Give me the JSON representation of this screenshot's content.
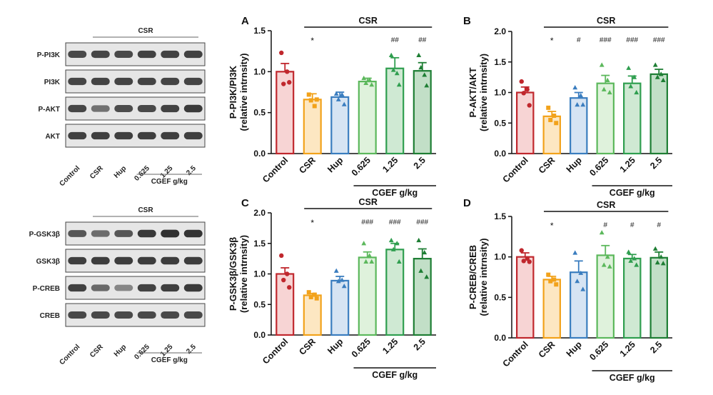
{
  "blots": {
    "top": {
      "group_label": "CSR",
      "rows": [
        "P-PI3K",
        "PI3K",
        "P-AKT",
        "AKT"
      ],
      "lanes": [
        "Control",
        "CSR",
        "Hup",
        "0.625",
        "1.25",
        "2.5"
      ],
      "dose_label": "CGEF g/kg",
      "band_intensity": [
        [
          0.8,
          0.82,
          0.8,
          0.84,
          0.84,
          0.85
        ],
        [
          0.82,
          0.83,
          0.83,
          0.83,
          0.83,
          0.83
        ],
        [
          0.82,
          0.55,
          0.78,
          0.8,
          0.84,
          0.88
        ],
        [
          0.85,
          0.86,
          0.86,
          0.86,
          0.86,
          0.86
        ]
      ]
    },
    "bottom": {
      "group_label": "CSR",
      "rows": [
        "P-GSK3β",
        "GSK3β",
        "P-CREB",
        "CREB"
      ],
      "lanes": [
        "Control",
        "CSR",
        "Hup",
        "0.625",
        "1.25",
        "2.5"
      ],
      "dose_label": "CGEF g/kg",
      "band_intensity": [
        [
          0.72,
          0.58,
          0.72,
          0.9,
          0.95,
          0.93
        ],
        [
          0.86,
          0.87,
          0.87,
          0.87,
          0.87,
          0.87
        ],
        [
          0.85,
          0.6,
          0.42,
          0.84,
          0.86,
          0.88
        ],
        [
          0.8,
          0.8,
          0.8,
          0.8,
          0.8,
          0.8
        ]
      ]
    }
  },
  "chart_data": [
    {
      "panel": "A",
      "type": "bar",
      "title": "",
      "ylabel": "P-PI3K/PI3K",
      "ylabel2": "(relative intrnsity)",
      "categories": [
        "Control",
        "CSR",
        "Hup",
        "0.625",
        "1.25",
        "2.5"
      ],
      "values": [
        1.0,
        0.66,
        0.69,
        0.88,
        1.04,
        1.01
      ],
      "errors": [
        0.1,
        0.07,
        0.06,
        0.04,
        0.13,
        0.1
      ],
      "points": [
        [
          1.23,
          1.0,
          0.85,
          0.87
        ],
        [
          0.72,
          0.58,
          0.65,
          0.66
        ],
        [
          0.73,
          0.72,
          0.66,
          0.6
        ],
        [
          0.92,
          0.9,
          0.86,
          0.84
        ],
        [
          1.2,
          0.98,
          1.02,
          0.84
        ],
        [
          1.2,
          0.96,
          1.05,
          0.83
        ]
      ],
      "significance": [
        "",
        "*",
        "",
        "",
        "##",
        "##"
      ],
      "ylim": [
        0.0,
        1.5
      ],
      "yticks": [
        0.0,
        0.5,
        1.0,
        1.5
      ],
      "tick_decimals": 1,
      "group_label": "CSR",
      "dose_label": "CGEF g/kg"
    },
    {
      "panel": "B",
      "type": "bar",
      "title": "",
      "ylabel": "P-AKT/AKT",
      "ylabel2": "(relative intrnsity)",
      "categories": [
        "Control",
        "CSR",
        "Hup",
        "0.625",
        "1.25",
        "2.5"
      ],
      "values": [
        1.0,
        0.61,
        0.91,
        1.15,
        1.15,
        1.3
      ],
      "errors": [
        0.09,
        0.08,
        0.09,
        0.13,
        0.12,
        0.08
      ],
      "points": [
        [
          1.18,
          1.05,
          0.99,
          0.79
        ],
        [
          0.75,
          0.62,
          0.55,
          0.5
        ],
        [
          1.08,
          0.95,
          0.8,
          0.8
        ],
        [
          1.45,
          1.2,
          1.05,
          1.0
        ],
        [
          1.4,
          1.25,
          1.1,
          1.0
        ],
        [
          1.45,
          1.3,
          1.25,
          1.2
        ]
      ],
      "significance": [
        "",
        "*",
        "#",
        "###",
        "###",
        "###"
      ],
      "ylim": [
        0.0,
        2.0
      ],
      "yticks": [
        0.0,
        0.5,
        1.0,
        1.5,
        2.0
      ],
      "tick_decimals": 1,
      "group_label": "CSR",
      "dose_label": "CGEF g/kg"
    },
    {
      "panel": "C",
      "type": "bar",
      "title": "",
      "ylabel": "P-GSK3β/GSK3β",
      "ylabel2": "(relative intrnsity)",
      "categories": [
        "Control",
        "CSR",
        "Hup",
        "0.625",
        "1.25",
        "2.5"
      ],
      "values": [
        1.0,
        0.65,
        0.89,
        1.27,
        1.4,
        1.25
      ],
      "errors": [
        0.1,
        0.03,
        0.07,
        0.09,
        0.1,
        0.16
      ],
      "points": [
        [
          1.3,
          1.0,
          0.9,
          0.78
        ],
        [
          0.7,
          0.66,
          0.62,
          0.6
        ],
        [
          1.05,
          0.9,
          0.88,
          0.8
        ],
        [
          1.5,
          1.3,
          1.2,
          1.2
        ],
        [
          1.55,
          1.5,
          1.4,
          1.2
        ],
        [
          1.55,
          1.35,
          1.05,
          0.95
        ]
      ],
      "significance": [
        "",
        "*",
        "",
        "###",
        "###",
        "###"
      ],
      "ylim": [
        0.0,
        2.0
      ],
      "yticks": [
        0.0,
        0.5,
        1.0,
        1.5,
        2.0
      ],
      "tick_decimals": 1,
      "group_label": "CSR",
      "dose_label": "CGEF g/kg"
    },
    {
      "panel": "D",
      "type": "bar",
      "title": "",
      "ylabel": "P-CREB/CREB",
      "ylabel2": "(relative intrnsity)",
      "categories": [
        "Control",
        "CSR",
        "Hup",
        "0.625",
        "1.25",
        "2.5"
      ],
      "values": [
        1.0,
        0.72,
        0.81,
        1.02,
        0.98,
        0.99
      ],
      "errors": [
        0.05,
        0.04,
        0.14,
        0.12,
        0.05,
        0.07
      ],
      "points": [
        [
          1.08,
          0.98,
          0.95,
          0.94
        ],
        [
          0.78,
          0.72,
          0.7,
          0.66
        ],
        [
          1.05,
          0.8,
          0.7,
          0.6
        ],
        [
          1.3,
          1.0,
          0.9,
          0.88
        ],
        [
          1.06,
          0.98,
          0.95,
          0.9
        ],
        [
          1.1,
          1.0,
          0.93,
          0.92
        ]
      ],
      "significance": [
        "",
        "*",
        "",
        "#",
        "#",
        "#"
      ],
      "ylim": [
        0.0,
        1.5
      ],
      "yticks": [
        0.0,
        0.5,
        1.0,
        1.5
      ],
      "tick_decimals": 1,
      "group_label": "CSR",
      "dose_label": "CGEF g/kg"
    }
  ],
  "colors": {
    "edges": [
      "#c0272d",
      "#f2a21b",
      "#3a7dbf",
      "#5cb85c",
      "#2f9e4f",
      "#1e7e34"
    ],
    "fills": [
      "#f7d4d4",
      "#fde7c2",
      "#d6e4f3",
      "#dff2dc",
      "#cfe9d3",
      "#c2dfc7"
    ],
    "markers": [
      "circle",
      "square",
      "triangle",
      "triangle",
      "triangle",
      "triangle"
    ]
  }
}
